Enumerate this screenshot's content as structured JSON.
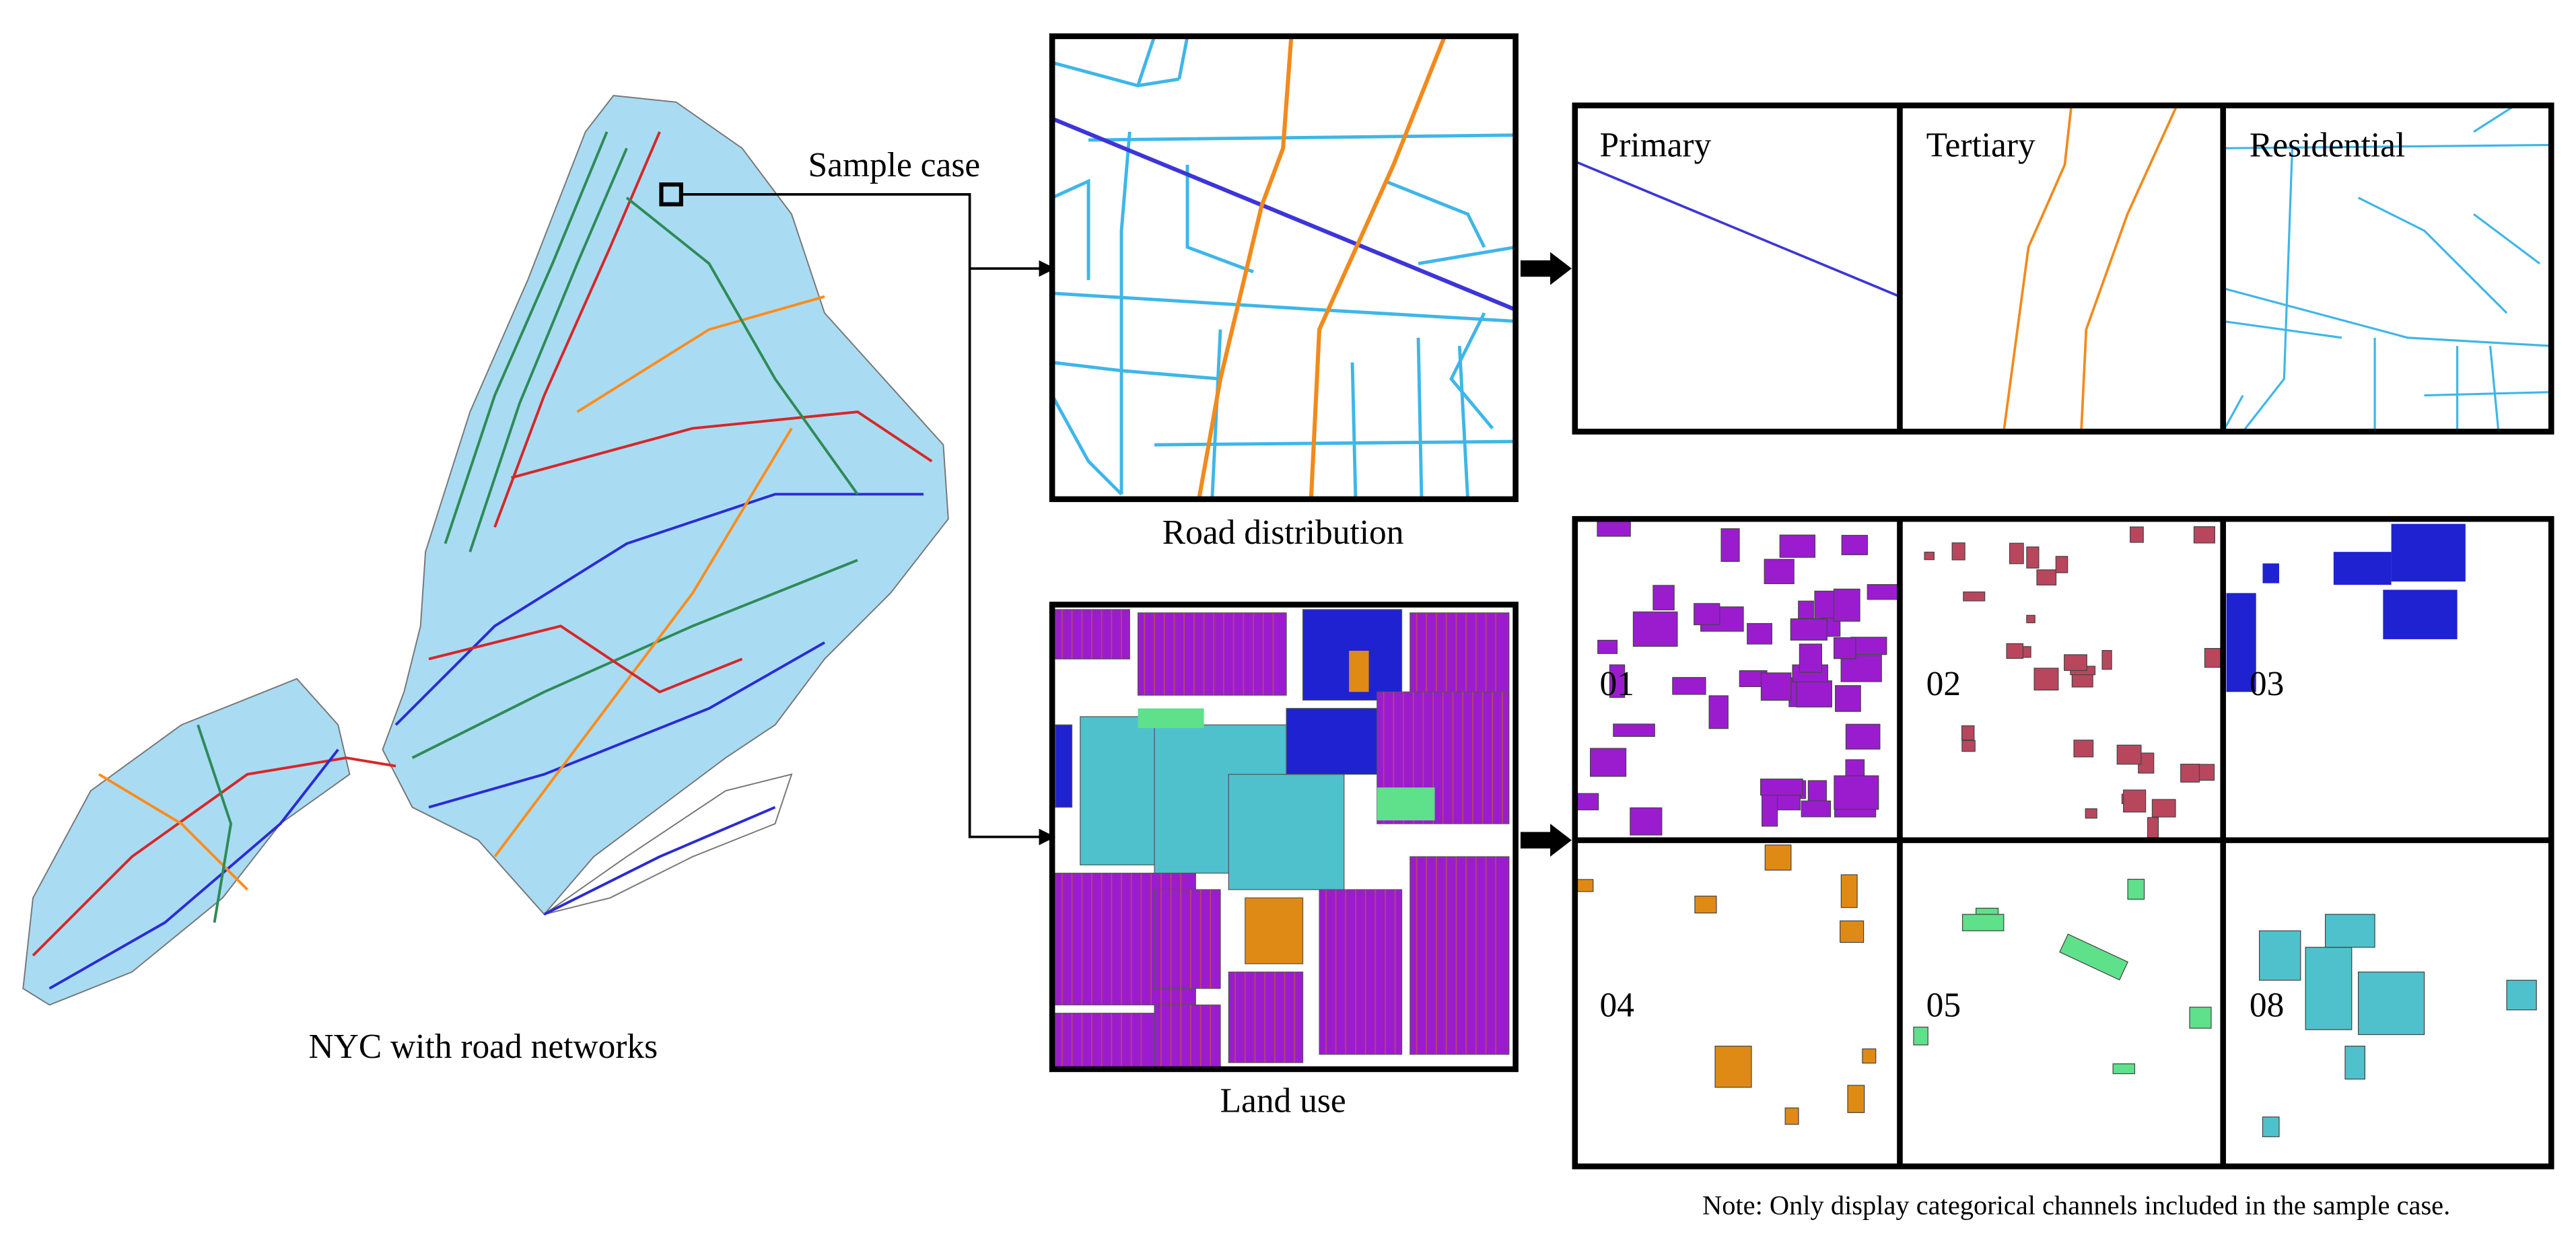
{
  "map": {
    "caption": "NYC with road networks",
    "callout": "Sample case"
  },
  "road_distribution": {
    "caption": "Road distribution",
    "channels": [
      "Primary",
      "Tertiary",
      "Residential"
    ]
  },
  "land_use": {
    "caption": "Land use",
    "channels": [
      "01",
      "02",
      "03",
      "04",
      "05",
      "08"
    ]
  },
  "note": "Note: Only display categorical channels included in the sample case."
}
